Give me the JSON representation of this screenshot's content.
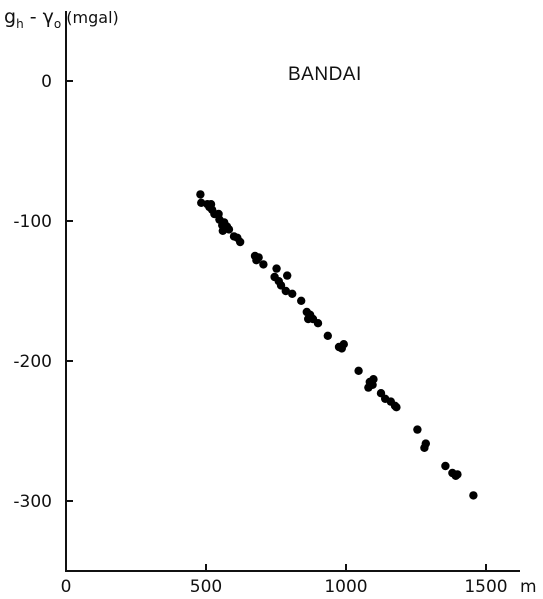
{
  "chart_data": {
    "type": "scatter",
    "title": "BANDAI",
    "ylabel": {
      "g": "g",
      "g_sub": "h",
      "minus": " - ",
      "gamma": "γ",
      "gamma_sub": "o",
      "unit": " (mgal)"
    },
    "xunit": "m",
    "xlim": [
      0,
      1600
    ],
    "ylim": [
      -350,
      50
    ],
    "xticks": [
      {
        "value": 0,
        "label": "0"
      },
      {
        "value": 500,
        "label": "500"
      },
      {
        "value": 1000,
        "label": "1000"
      },
      {
        "value": 1500,
        "label": "1500"
      }
    ],
    "yticks": [
      {
        "value": 0,
        "label": "0"
      },
      {
        "value": -100,
        "label": "-100"
      },
      {
        "value": -200,
        "label": "-200"
      },
      {
        "value": -300,
        "label": "-300"
      }
    ],
    "points": [
      [
        480,
        -81
      ],
      [
        483,
        -87
      ],
      [
        505,
        -88
      ],
      [
        512,
        -90
      ],
      [
        518,
        -88
      ],
      [
        522,
        -92
      ],
      [
        530,
        -95
      ],
      [
        545,
        -95
      ],
      [
        548,
        -99
      ],
      [
        558,
        -103
      ],
      [
        560,
        -107
      ],
      [
        565,
        -101
      ],
      [
        575,
        -104
      ],
      [
        582,
        -106
      ],
      [
        600,
        -111
      ],
      [
        612,
        -112
      ],
      [
        622,
        -115
      ],
      [
        675,
        -125
      ],
      [
        680,
        -128
      ],
      [
        688,
        -126
      ],
      [
        705,
        -131
      ],
      [
        745,
        -140
      ],
      [
        752,
        -134
      ],
      [
        760,
        -143
      ],
      [
        768,
        -146
      ],
      [
        785,
        -150
      ],
      [
        790,
        -139
      ],
      [
        808,
        -152
      ],
      [
        840,
        -157
      ],
      [
        860,
        -165
      ],
      [
        865,
        -170
      ],
      [
        872,
        -167
      ],
      [
        882,
        -170
      ],
      [
        900,
        -173
      ],
      [
        935,
        -182
      ],
      [
        975,
        -190
      ],
      [
        985,
        -191
      ],
      [
        992,
        -188
      ],
      [
        1045,
        -207
      ],
      [
        1080,
        -219
      ],
      [
        1085,
        -215
      ],
      [
        1095,
        -217
      ],
      [
        1098,
        -213
      ],
      [
        1125,
        -223
      ],
      [
        1140,
        -227
      ],
      [
        1160,
        -229
      ],
      [
        1175,
        -232
      ],
      [
        1180,
        -233
      ],
      [
        1255,
        -249
      ],
      [
        1280,
        -262
      ],
      [
        1285,
        -259
      ],
      [
        1355,
        -275
      ],
      [
        1380,
        -280
      ],
      [
        1392,
        -282
      ],
      [
        1398,
        -281
      ],
      [
        1455,
        -296
      ]
    ]
  }
}
